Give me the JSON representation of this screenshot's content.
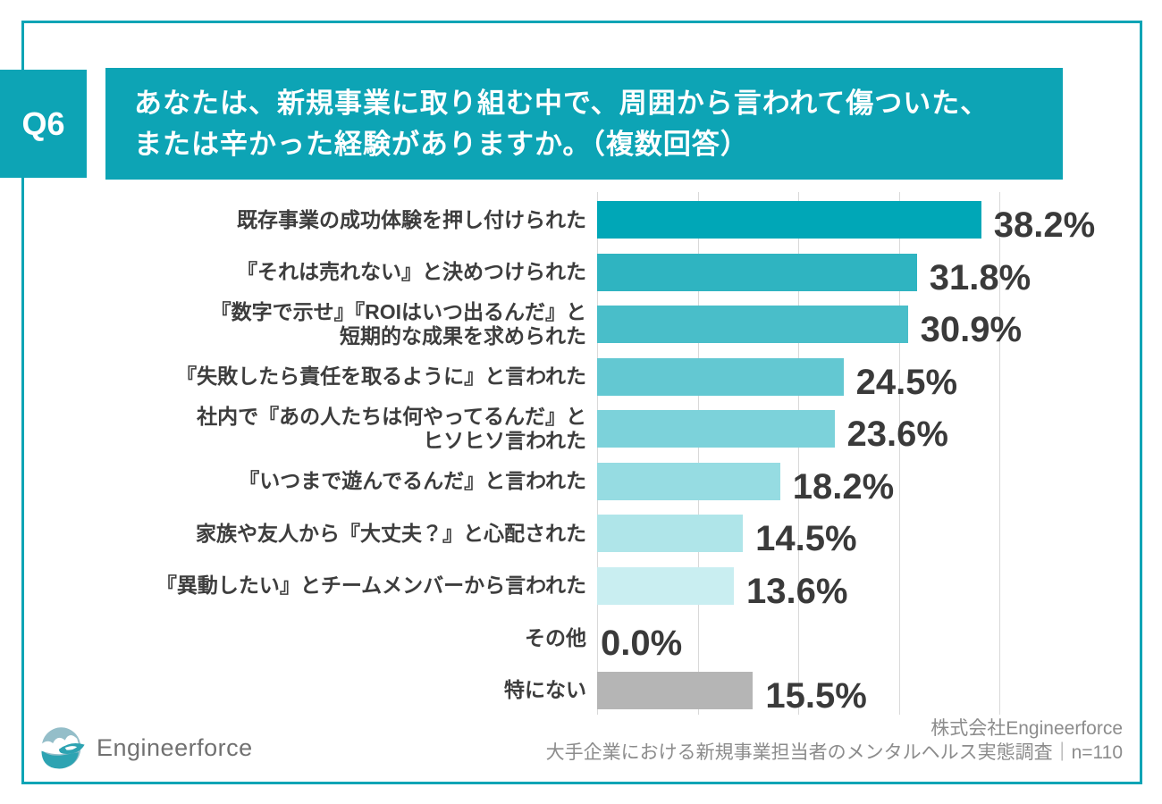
{
  "header": {
    "badge": "Q6",
    "title_lines": [
      "あなたは、新規事業に取り組む中で、周囲から言われて傷ついた、",
      "または辛かった経験がありますか。（複数回答）"
    ]
  },
  "chart_data": {
    "type": "bar",
    "orientation": "horizontal",
    "unit": "%",
    "categories": [
      [
        "既存事業の成功体験を押し付けられた"
      ],
      [
        "『それは売れない』と決めつけられた"
      ],
      [
        "『数字で示せ』『ROIはいつ出るんだ』と",
        "短期的な成果を求められた"
      ],
      [
        "『失敗したら責任を取るように』と言われた"
      ],
      [
        "社内で『あの人たちは何やってるんだ』と",
        "ヒソヒソ言われた"
      ],
      [
        "『いつまで遊んでるんだ』と言われた"
      ],
      [
        "家族や友人から『大丈夫？』と心配された"
      ],
      [
        "『異動したい』とチームメンバーから言われた"
      ],
      [
        "その他"
      ],
      [
        "特にない"
      ]
    ],
    "values": [
      38.2,
      31.8,
      30.9,
      24.5,
      23.6,
      18.2,
      14.5,
      13.6,
      0.0,
      15.5
    ],
    "bar_colors": [
      "#00a7b7",
      "#2fb4c1",
      "#49bec9",
      "#63c8d2",
      "#7cd2da",
      "#96dce2",
      "#afe5e9",
      "#c9eef1",
      null,
      "#b5b5b5"
    ],
    "xlim": [
      0,
      50
    ],
    "grid_ticks": [
      0,
      10,
      20,
      30,
      40
    ],
    "grid": true,
    "legend": false,
    "value_labels": [
      "38.2%",
      "31.8%",
      "30.9%",
      "24.5%",
      "23.6%",
      "18.2%",
      "14.5%",
      "13.6%",
      "0.0%",
      "15.5%"
    ]
  },
  "footer": {
    "logo_text": "Engineerforce",
    "source_line1": "株式会社Engineerforce",
    "source_line2": "大手企業における新規事業担当者のメンタルヘルス実態調査｜n=110"
  },
  "colors": {
    "accent_teal": "#0da4b5",
    "grid_line": "#d9d9d9",
    "value_text": "#3a3a3a",
    "label_text": "#3d3d3d",
    "source_text": "#8c8c8c",
    "neutral_bar": "#b5b5b5"
  }
}
